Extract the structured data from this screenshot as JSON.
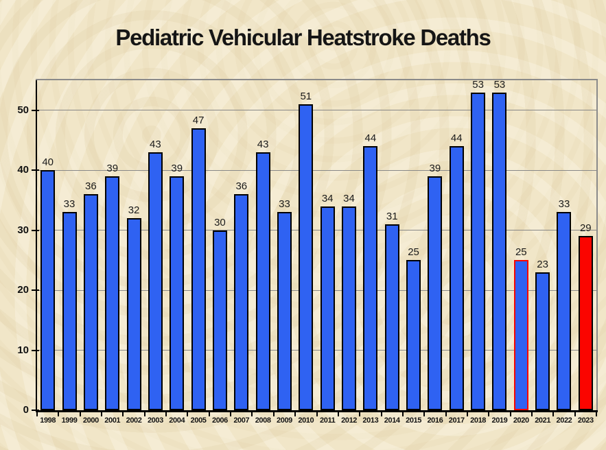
{
  "title": "Pediatric Vehicular Heatstroke Deaths",
  "colors": {
    "background": "#f1e6c8",
    "bar_fill": "#2f62f2",
    "bar_stroke": "#000000",
    "highlight_red": "#fb0500",
    "gridline": "#878787",
    "plot_border": "#8a8a8a",
    "axis": "#000000",
    "text": "#151515"
  },
  "chart_data": {
    "type": "bar",
    "title": "Pediatric Vehicular Heatstroke Deaths",
    "xlabel": "",
    "ylabel": "",
    "categories": [
      "1998",
      "1999",
      "2000",
      "2001",
      "2002",
      "2003",
      "2004",
      "2005",
      "2006",
      "2007",
      "2008",
      "2009",
      "2010",
      "2011",
      "2012",
      "2013",
      "2014",
      "2015",
      "2016",
      "2017",
      "2018",
      "2019",
      "2020",
      "2021",
      "2022",
      "2023"
    ],
    "values": [
      40,
      33,
      36,
      39,
      32,
      43,
      39,
      47,
      30,
      36,
      43,
      33,
      51,
      34,
      34,
      44,
      31,
      25,
      39,
      44,
      53,
      53,
      25,
      23,
      33,
      29
    ],
    "data_labels_shown": true,
    "ylim": [
      0,
      55
    ],
    "yticks": [
      0,
      10,
      20,
      30,
      40,
      50
    ],
    "grid": true,
    "legend": "none",
    "special_bars": {
      "2020": {
        "fill": "#2f62f2",
        "stroke": "#fb0500"
      },
      "2023": {
        "fill": "#fb0500",
        "stroke": "#000000"
      }
    }
  }
}
